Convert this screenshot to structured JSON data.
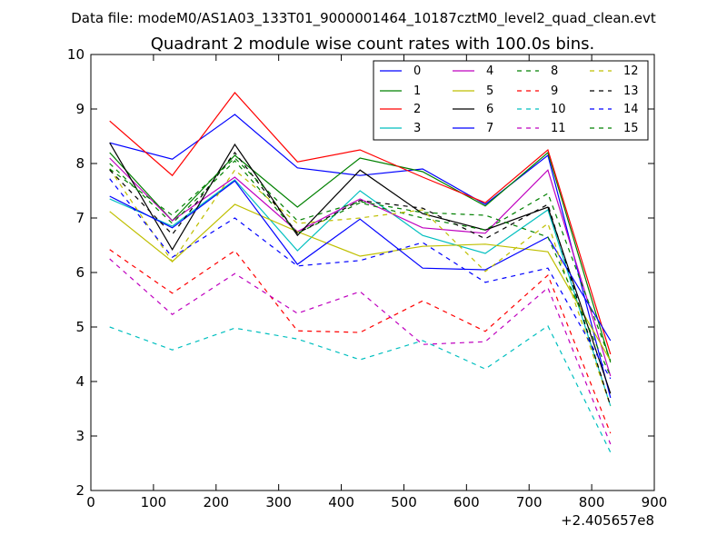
{
  "figure": {
    "suptitle": "Data file: modeM0/AS1A03_133T01_9000001464_10187cztM0_level2_quad_clean.evt"
  },
  "chart_data": {
    "type": "line",
    "title": "Quadrant 2 module wise count rates with 100.0s bins.",
    "xlabel": "",
    "ylabel": "",
    "x_offset_label": "+2.405657e8",
    "xlim": [
      0,
      900
    ],
    "ylim": [
      2,
      10
    ],
    "xticks": [
      0,
      100,
      200,
      300,
      400,
      500,
      600,
      700,
      800,
      900
    ],
    "yticks": [
      2,
      3,
      4,
      5,
      6,
      7,
      8,
      9,
      10
    ],
    "x": [
      30,
      130,
      230,
      330,
      430,
      530,
      630,
      730,
      830
    ],
    "legend_position": "upper-right",
    "series": [
      {
        "name": "0",
        "color": "#0000ff",
        "dash": false,
        "values": [
          8.38,
          8.08,
          8.9,
          7.92,
          7.78,
          7.9,
          7.25,
          8.15,
          3.7
        ]
      },
      {
        "name": "1",
        "color": "#008000",
        "dash": false,
        "values": [
          8.2,
          6.95,
          8.15,
          7.2,
          8.1,
          7.85,
          7.22,
          8.2,
          4.35
        ]
      },
      {
        "name": "2",
        "color": "#ff0000",
        "dash": false,
        "values": [
          8.78,
          7.78,
          9.3,
          8.03,
          8.25,
          7.75,
          7.28,
          8.25,
          4.5
        ]
      },
      {
        "name": "3",
        "color": "#00bfbf",
        "dash": false,
        "values": [
          7.35,
          6.85,
          7.7,
          6.4,
          7.5,
          6.68,
          6.35,
          7.15,
          3.55
        ]
      },
      {
        "name": "4",
        "color": "#bf00bf",
        "dash": false,
        "values": [
          8.1,
          6.95,
          7.75,
          6.75,
          7.35,
          6.82,
          6.72,
          7.88,
          4.1
        ]
      },
      {
        "name": "5",
        "color": "#bfbf00",
        "dash": false,
        "values": [
          7.12,
          6.2,
          7.25,
          6.75,
          6.3,
          6.48,
          6.52,
          6.38,
          4.38
        ]
      },
      {
        "name": "6",
        "color": "#000000",
        "dash": false,
        "values": [
          8.38,
          6.42,
          8.35,
          6.68,
          7.88,
          7.08,
          6.78,
          7.2,
          3.78
        ]
      },
      {
        "name": "7",
        "color": "#0000ff",
        "dash": false,
        "values": [
          7.4,
          6.82,
          7.68,
          6.15,
          6.98,
          6.08,
          6.05,
          6.65,
          4.75
        ]
      },
      {
        "name": "8",
        "color": "#008000",
        "dash": true,
        "values": [
          8.0,
          6.9,
          8.05,
          6.72,
          7.28,
          7.0,
          6.78,
          7.45,
          4.38
        ]
      },
      {
        "name": "9",
        "color": "#ff0000",
        "dash": true,
        "values": [
          6.42,
          5.62,
          6.4,
          4.93,
          4.9,
          5.48,
          4.92,
          5.95,
          3.05
        ]
      },
      {
        "name": "10",
        "color": "#00bfbf",
        "dash": true,
        "values": [
          5.0,
          4.58,
          4.98,
          4.78,
          4.4,
          4.75,
          4.23,
          5.02,
          2.7
        ]
      },
      {
        "name": "11",
        "color": "#bf00bf",
        "dash": true,
        "values": [
          6.25,
          5.23,
          5.98,
          5.25,
          5.65,
          4.68,
          4.73,
          5.72,
          2.85
        ]
      },
      {
        "name": "12",
        "color": "#bfbf00",
        "dash": true,
        "values": [
          7.9,
          6.2,
          7.88,
          6.9,
          7.0,
          7.15,
          6.02,
          6.9,
          3.55
        ]
      },
      {
        "name": "13",
        "color": "#000000",
        "dash": true,
        "values": [
          7.88,
          6.7,
          8.2,
          6.72,
          7.32,
          7.18,
          6.62,
          7.25,
          3.55
        ]
      },
      {
        "name": "14",
        "color": "#0000ff",
        "dash": true,
        "values": [
          7.72,
          6.28,
          7.0,
          6.12,
          6.22,
          6.55,
          5.82,
          6.08,
          4.05
        ]
      },
      {
        "name": "15",
        "color": "#008000",
        "dash": true,
        "values": [
          7.9,
          7.05,
          8.1,
          6.95,
          7.3,
          7.1,
          7.05,
          6.65,
          4.1
        ]
      }
    ]
  }
}
